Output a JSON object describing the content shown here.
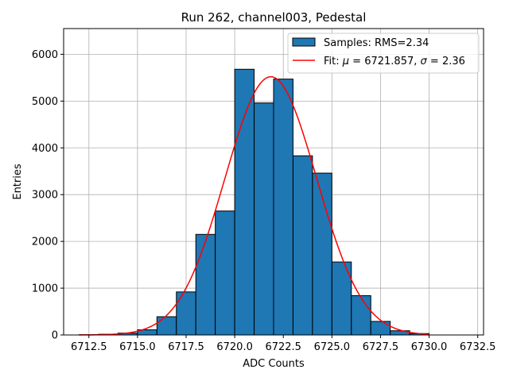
{
  "chart_data": {
    "type": "bar",
    "title": "Run 262, channel003, Pedestal",
    "xlabel": "ADC Counts",
    "ylabel": "Entries",
    "xlim": [
      6711.2,
      6732.8
    ],
    "ylim": [
      0,
      6550
    ],
    "grid": true,
    "x_ticks": [
      6712.5,
      6715.0,
      6717.5,
      6720.0,
      6722.5,
      6725.0,
      6727.5,
      6730.0,
      6732.5
    ],
    "x_tick_labels": [
      "6712.5",
      "6715.0",
      "6717.5",
      "6720.0",
      "6722.5",
      "6725.0",
      "6727.5",
      "6730.0",
      "6732.5"
    ],
    "y_ticks": [
      0,
      1000,
      2000,
      3000,
      4000,
      5000,
      6000
    ],
    "y_tick_labels": [
      "0",
      "1000",
      "2000",
      "3000",
      "4000",
      "5000",
      "6000"
    ],
    "histogram": {
      "name": "Samples: RMS=2.34",
      "color": "#1f77b4",
      "edge_color": "#000000",
      "bin_edges": [
        6712,
        6713,
        6714,
        6715,
        6716,
        6717,
        6718,
        6719,
        6720,
        6721,
        6722,
        6723,
        6724,
        6725,
        6726,
        6727,
        6728,
        6729,
        6730
      ],
      "counts": [
        5,
        15,
        40,
        110,
        390,
        920,
        2150,
        2650,
        5680,
        4960,
        5470,
        3830,
        3460,
        1560,
        840,
        290,
        90,
        30
      ]
    },
    "fit": {
      "name": "Fit: μ = 6721.857, σ = 2.36",
      "label_prefix": "Fit: ",
      "mu_symbol": "μ",
      "sigma_symbol": "σ",
      "mu_value": "6721.857",
      "sigma_value": "2.36",
      "color": "#ff0000",
      "mu": 6721.857,
      "sigma": 2.36,
      "amplitude": 5520,
      "x_start": 6712,
      "x_end": 6730
    },
    "legend": {
      "position": "upper-right",
      "entries": [
        "Samples: RMS=2.34",
        "Fit: μ = 6721.857, σ = 2.36"
      ]
    }
  }
}
